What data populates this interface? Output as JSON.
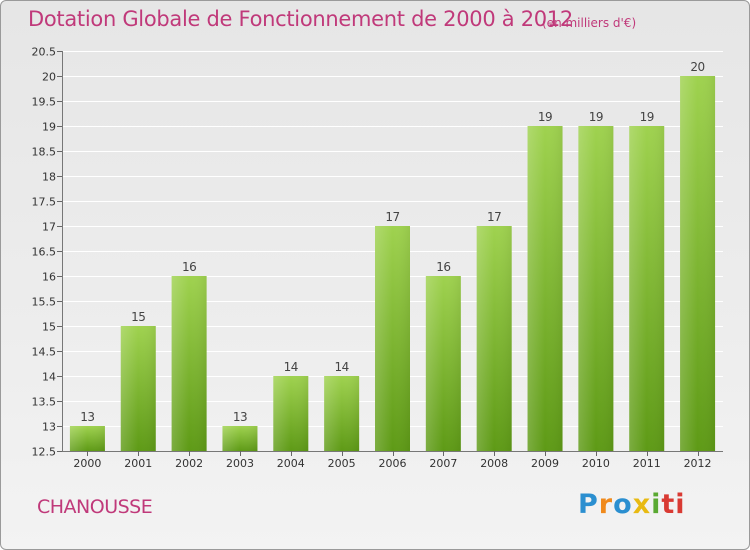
{
  "header": {
    "title": "Dotation Globale de Fonctionnement de 2000 à 2012",
    "subtitle": "(en milliers d'€)"
  },
  "footer": {
    "commune": "CHANOUSSE",
    "logo_letters": [
      "P",
      "r",
      "o",
      "x",
      "i",
      "ti"
    ]
  },
  "colors": {
    "title": "#c0397a",
    "bar_top": "#9fd24f",
    "bar_bottom": "#5e9a16",
    "grid": "#ffffff"
  },
  "chart_data": {
    "type": "bar",
    "categories": [
      "2000",
      "2001",
      "2002",
      "2003",
      "2004",
      "2005",
      "2006",
      "2007",
      "2008",
      "2009",
      "2010",
      "2011",
      "2012"
    ],
    "values": [
      13,
      15,
      16,
      13,
      14,
      14,
      17,
      16,
      17,
      19,
      19,
      19,
      20
    ],
    "data_labels": [
      "13",
      "15",
      "16",
      "13",
      "14",
      "14",
      "17",
      "16",
      "17",
      "19",
      "19",
      "19",
      "20"
    ],
    "yticks": [
      "12.5",
      "13",
      "13.5",
      "14",
      "14.5",
      "15",
      "15.5",
      "16",
      "16.5",
      "17",
      "17.5",
      "18",
      "18.5",
      "19",
      "19.5",
      "20",
      "20.5"
    ],
    "ylim": [
      12.5,
      20.5
    ],
    "grid": true,
    "legend": "none"
  }
}
